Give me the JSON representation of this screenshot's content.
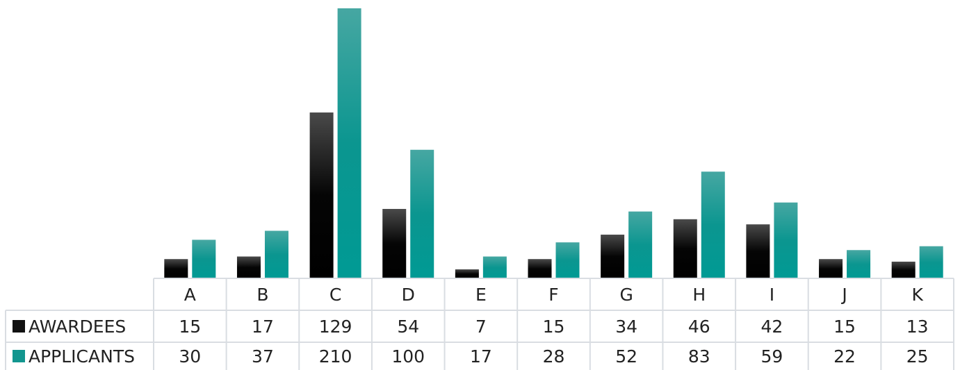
{
  "chart_data": {
    "type": "bar",
    "title": "",
    "xlabel": "",
    "ylabel": "",
    "categories": [
      "A",
      "B",
      "C",
      "D",
      "E",
      "F",
      "G",
      "H",
      "I",
      "J",
      "K"
    ],
    "series": [
      {
        "name": "AWARDEES",
        "values": [
          15,
          17,
          129,
          54,
          7,
          15,
          34,
          46,
          42,
          15,
          13
        ],
        "color": "#111111"
      },
      {
        "name": "APPLICANTS",
        "values": [
          30,
          37,
          210,
          100,
          17,
          28,
          52,
          83,
          59,
          22,
          25
        ],
        "color": "#12968f"
      }
    ],
    "ylim": [
      0,
      210
    ],
    "grid": false,
    "legend": "data-table-left"
  }
}
